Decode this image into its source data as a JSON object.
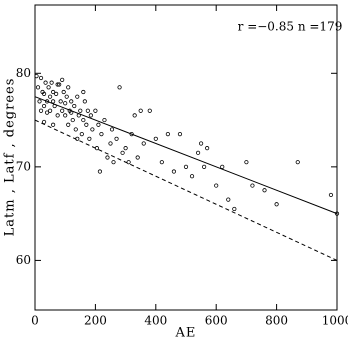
{
  "chart_data": {
    "type": "scatter",
    "annotation": "r =−0.85   n =179",
    "xlabel": "AE",
    "ylabel": "Latm , Latf , degrees",
    "xlim": [
      0,
      1000
    ],
    "ylim": [
      54.7,
      87.3
    ],
    "xticks": [
      0,
      200,
      400,
      600,
      800,
      1000
    ],
    "yticks": [
      60,
      70,
      80
    ],
    "series": [
      {
        "color": "#000000",
        "x": [
          10,
          15,
          20,
          25,
          30,
          30,
          35,
          40,
          45,
          50,
          50,
          55,
          60,
          65,
          70,
          75,
          80,
          85,
          90,
          95,
          100,
          100,
          105,
          110,
          115,
          120,
          125,
          130,
          135,
          140,
          145,
          150,
          155,
          160,
          165,
          170,
          175,
          180,
          185,
          190,
          200,
          205,
          210,
          215,
          220,
          230,
          240,
          250,
          255,
          260,
          270,
          280,
          290,
          300,
          310,
          320,
          330,
          340,
          350,
          360,
          380,
          400,
          420,
          440,
          460,
          480,
          500,
          520,
          540,
          550,
          560,
          570,
          600,
          620,
          640,
          660,
          700,
          720,
          760,
          800,
          870,
          980,
          1000,
          5,
          20,
          40,
          60,
          75,
          90,
          110,
          120,
          140,
          160,
          60,
          30
        ],
        "values": [
          78.5,
          77,
          79.5,
          78,
          76.5,
          77.8,
          79,
          77,
          78.5,
          76,
          77.5,
          79,
          78,
          76.5,
          77.8,
          75.5,
          78.8,
          77,
          76,
          78,
          76.8,
          75.5,
          77.5,
          74.5,
          76,
          77,
          75,
          76.5,
          74,
          77.5,
          75.5,
          76,
          73.5,
          75,
          77,
          74.5,
          76,
          73,
          75.5,
          74,
          76,
          72,
          74.5,
          69.5,
          73.5,
          75,
          71,
          72.5,
          74,
          70.5,
          73,
          78.5,
          71.5,
          72,
          70.5,
          73.5,
          75.5,
          71,
          76,
          72.5,
          76,
          73,
          70.5,
          73.5,
          69.5,
          73.5,
          70,
          69,
          71.5,
          72.5,
          70,
          72,
          68,
          70,
          66.5,
          65.5,
          70.5,
          68,
          67.5,
          66,
          70.5,
          67,
          65,
          79.7,
          76,
          75.8,
          77,
          78.8,
          79.3,
          78.5,
          75.8,
          73,
          78,
          74.5,
          74.8
        ]
      }
    ],
    "fit_lines": [
      {
        "style": "solid",
        "x": [
          0,
          1000
        ],
        "values": [
          77.5,
          65
        ]
      },
      {
        "style": "dashed",
        "x": [
          0,
          1000
        ],
        "values": [
          75,
          60
        ]
      }
    ]
  }
}
